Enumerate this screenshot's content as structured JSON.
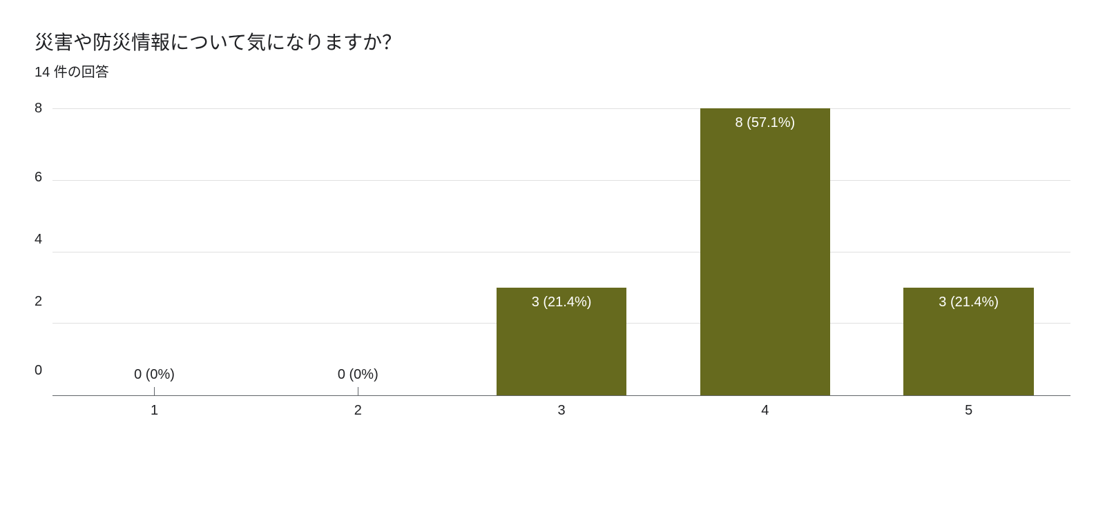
{
  "chart": {
    "type": "bar",
    "title": "災害や防災情報について気になりますか？",
    "subtitle": "14 件の回答",
    "title_fontsize": 28,
    "subtitle_fontsize": 20,
    "background_color": "#ffffff",
    "text_color": "#202124",
    "grid_color": "#e0e0e0",
    "axis_color": "#5f6368",
    "bar_color": "#666a1e",
    "bar_label_inside_color": "#ffffff",
    "bar_label_outside_color": "#202124",
    "bar_width_ratio": 0.64,
    "ylim": [
      0,
      8
    ],
    "ytick_step": 2,
    "yticks": [
      "8",
      "6",
      "4",
      "2",
      "0"
    ],
    "categories": [
      "1",
      "2",
      "3",
      "4",
      "5"
    ],
    "values": [
      0,
      0,
      3,
      8,
      3
    ],
    "value_labels": [
      "0 (0%)",
      "0 (0%)",
      "3 (21.4%)",
      "8 (57.1%)",
      "3 (21.4%)"
    ],
    "label_fontsize": 20,
    "tick_fontsize": 20
  }
}
